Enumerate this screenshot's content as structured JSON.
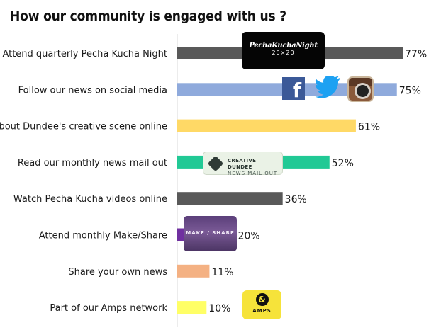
{
  "page": {
    "title": "How our community is engaged with us ?"
  },
  "chart_data": {
    "type": "bar",
    "orientation": "horizontal",
    "title": "How our community is engaged with us ?",
    "xlim": [
      0,
      100
    ],
    "grid": false,
    "legend": "none",
    "categories": [
      "Attend quarterly Pecha Kucha Night",
      "Follow our news on social media",
      "Read about Dundee's creative scene online",
      "Read our monthly news mail out",
      "Watch Pecha Kucha videos online",
      "Attend monthly Make/Share",
      "Share your own news",
      "Part of our Amps network"
    ],
    "values": [
      77,
      75,
      61,
      52,
      36,
      20,
      11,
      10
    ],
    "value_labels": [
      "77%",
      "75%",
      "61%",
      "52%",
      "36%",
      "20%",
      "11%",
      "10%"
    ],
    "colors": [
      "#595959",
      "#8faadc",
      "#ffd966",
      "#21c995",
      "#595959",
      "#7030a0",
      "#f4b183",
      "#ffff66"
    ]
  },
  "logos": {
    "pecha_kucha": {
      "name": "PechaKuchaNight",
      "sub": "20×20"
    },
    "facebook": {
      "glyph": "f",
      "icon": "facebook-icon"
    },
    "twitter": {
      "icon": "twitter-bird-icon"
    },
    "instagram": {
      "icon": "instagram-camera-icon"
    },
    "creative_dundee": {
      "name": "CREATIVE DUNDEE",
      "sub": "NEWS MAIL OUT"
    },
    "make_share": {
      "name": "MAKE / SHARE"
    },
    "amps": {
      "glyph": "&",
      "name": "AMPS"
    }
  }
}
